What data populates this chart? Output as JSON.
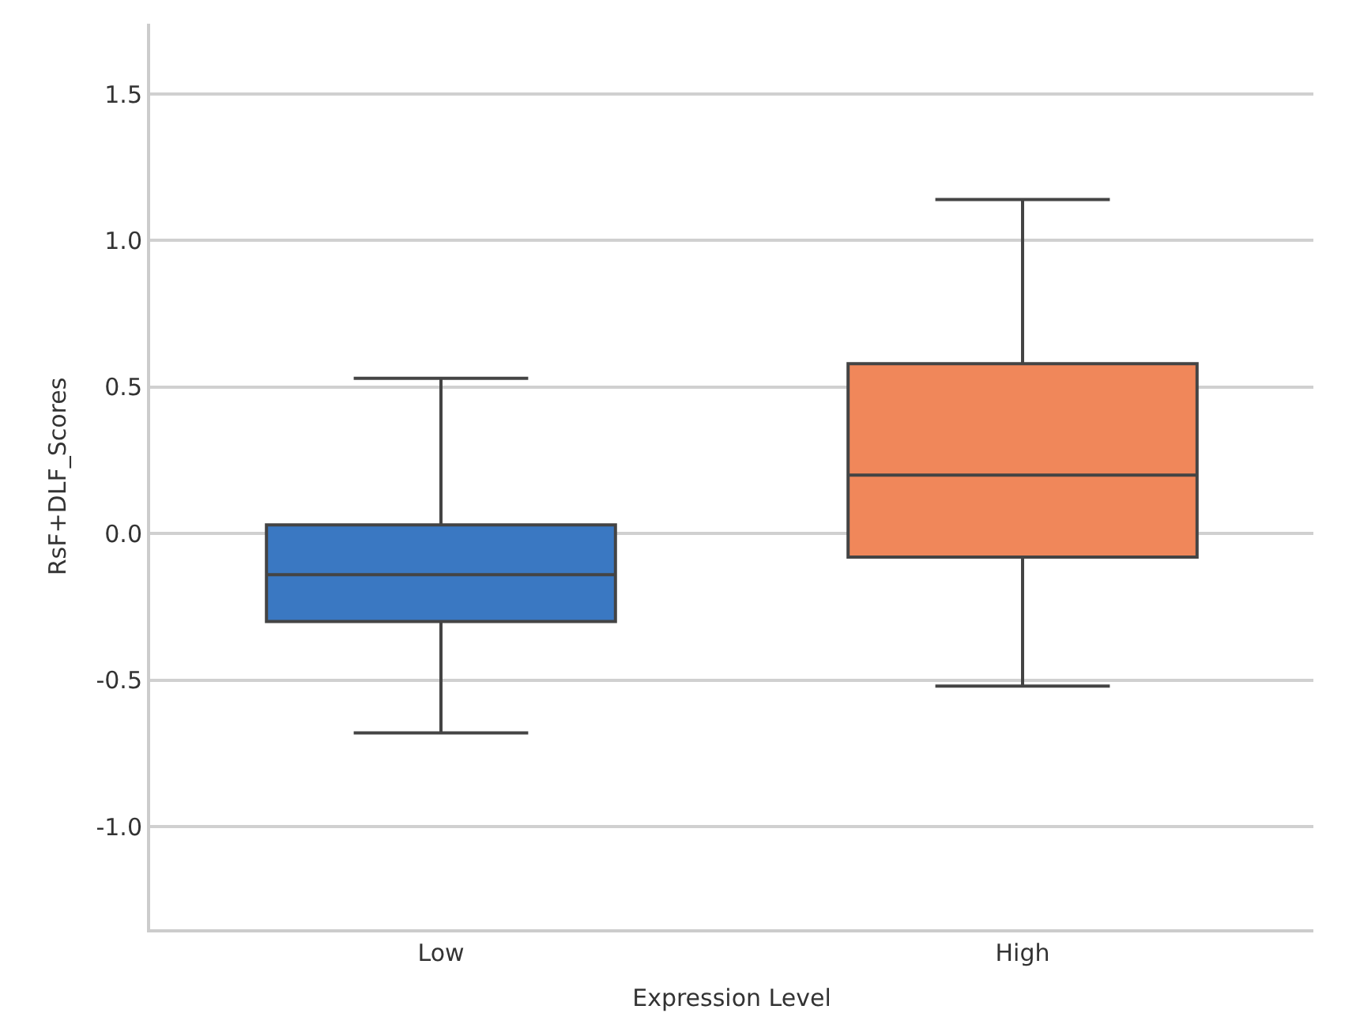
{
  "chart_data": {
    "type": "box",
    "xlabel": "Expression Level",
    "ylabel": "RsF+DLF_Scores",
    "categories": [
      "Low",
      "High"
    ],
    "colors": [
      "#3a78c2",
      "#f0875a"
    ],
    "boxes": [
      {
        "low": -0.68,
        "q1": -0.3,
        "median": -0.14,
        "q3": 0.03,
        "high": 0.53
      },
      {
        "low": -0.52,
        "q1": -0.08,
        "median": 0.2,
        "q3": 0.58,
        "high": 1.14
      }
    ],
    "ylim": [
      -1.35,
      1.74
    ],
    "yticks": [
      {
        "value": -1.0,
        "label": "-1.0"
      },
      {
        "value": -0.5,
        "label": "-0.5"
      },
      {
        "value": 0,
        "label": "0.0"
      },
      {
        "value": 0.5,
        "label": "0.5"
      },
      {
        "value": 1.0,
        "label": "1.0"
      },
      {
        "value": 1.5,
        "label": "1.5"
      }
    ],
    "grid": "y",
    "legend": false
  }
}
